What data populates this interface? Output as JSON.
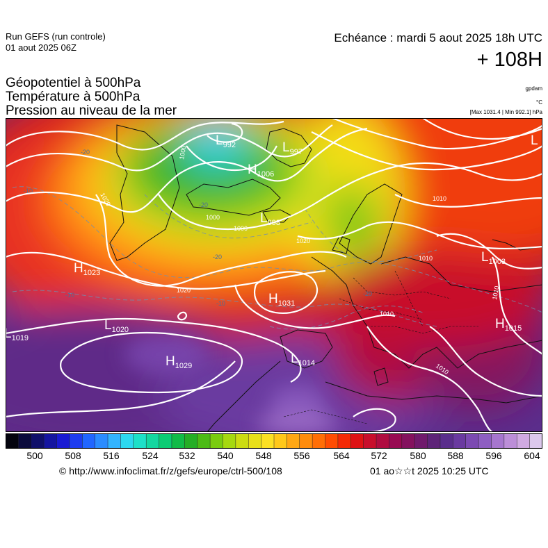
{
  "header": {
    "run_title": "Run GEFS (run controle)",
    "run_date": "01 aout 2025 06Z",
    "echeance": "Echéance : mardi 5 aout 2025 18h UTC",
    "hour": "+ 108H"
  },
  "parameters": [
    "Géopotentiel à 500hPa",
    "Température à 500hPa",
    "Pression au niveau de la mer"
  ],
  "units": {
    "geopotential": "gpdam",
    "temperature": "°C",
    "pressure": "[Max 1031.4 | Min 992.1] hPa"
  },
  "map": {
    "pressure_centers": [
      {
        "type": "L",
        "value": "992"
      },
      {
        "type": "L",
        "value": "997"
      },
      {
        "type": "H",
        "value": "1006"
      },
      {
        "type": "L",
        "value": "998"
      },
      {
        "type": "H",
        "value": "1023"
      },
      {
        "type": "H",
        "value": "1031"
      },
      {
        "type": "L",
        "value": "1020"
      },
      {
        "type": "L",
        "value": "1019"
      },
      {
        "type": "H",
        "value": "1029"
      },
      {
        "type": "L",
        "value": "1014"
      },
      {
        "type": "L",
        "value": "1003"
      },
      {
        "type": "H",
        "value": "1015"
      },
      {
        "type": "L",
        "value": ""
      }
    ],
    "isobar_labels": [
      "1000",
      "1000",
      "1000",
      "1020",
      "1020",
      "1010",
      "1010",
      "1010",
      "1010",
      "1010",
      "1020"
    ],
    "isotherm_labels": [
      "-20",
      "-20",
      "-20",
      "-10",
      "-10",
      "-10",
      "-20"
    ]
  },
  "colorbar": {
    "tick_labels": [
      "500",
      "508",
      "516",
      "524",
      "532",
      "540",
      "548",
      "556",
      "564",
      "572",
      "580",
      "588",
      "596",
      "604"
    ],
    "colors": [
      "#04040e",
      "#0a0a3c",
      "#10106a",
      "#1515a0",
      "#1a1ad2",
      "#1e3cf0",
      "#2166ff",
      "#2b8cff",
      "#33b4ff",
      "#2dd8f0",
      "#1ee0c8",
      "#14d7a0",
      "#0ccc74",
      "#12bb48",
      "#26ae26",
      "#4cbb16",
      "#7acc10",
      "#a6d810",
      "#ccdc12",
      "#e8e01a",
      "#fce024",
      "#ffc81a",
      "#ffa814",
      "#ff8c0c",
      "#ff6e06",
      "#ff4c02",
      "#f42a06",
      "#de1214",
      "#c80e2c",
      "#b00c40",
      "#980a52",
      "#84125e",
      "#701a6c",
      "#5e2478",
      "#5a2e8c",
      "#6a3aa0",
      "#7c4ab2",
      "#8e5ec2",
      "#a676ce",
      "#bc8ed8",
      "#d0aae2",
      "#dcc8ec"
    ]
  },
  "footer": {
    "source_url": "© http://www.infoclimat.fr/z/gefs/europe/ctrl-500/108",
    "generated": "01 ao☆☆t 2025 10:25 UTC"
  }
}
